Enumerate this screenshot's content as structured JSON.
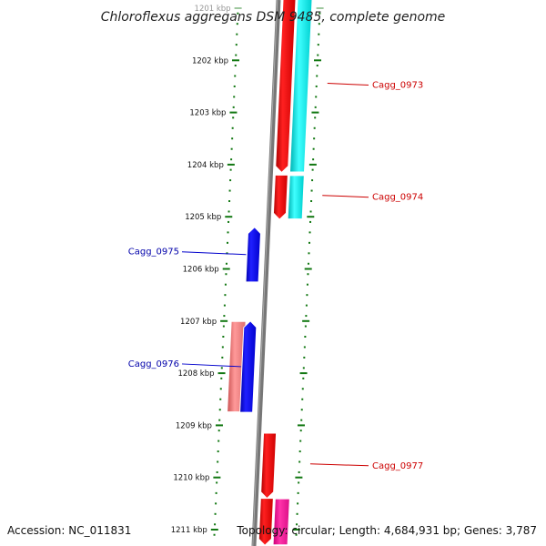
{
  "title": "Chloroflexus aggregans DSM 9485, complete genome",
  "footer": {
    "accession": "Accession: NC_011831",
    "summary": "Topology: circular; Length: 4,684,931 bp; Genes: 3,787"
  },
  "ticks": [
    {
      "label": "1201 kbp",
      "kbp": 1201,
      "faded": true
    },
    {
      "label": "1202 kbp",
      "kbp": 1202
    },
    {
      "label": "1203 kbp",
      "kbp": 1203
    },
    {
      "label": "1204 kbp",
      "kbp": 1204
    },
    {
      "label": "1205 kbp",
      "kbp": 1205
    },
    {
      "label": "1206 kbp",
      "kbp": 1206
    },
    {
      "label": "1207 kbp",
      "kbp": 1207
    },
    {
      "label": "1208 kbp",
      "kbp": 1208
    },
    {
      "label": "1209 kbp",
      "kbp": 1209
    },
    {
      "label": "1210 kbp",
      "kbp": 1210
    },
    {
      "label": "1211 kbp",
      "kbp": 1211
    }
  ],
  "genes": [
    {
      "name": "Cagg_0973",
      "strand": "reverse",
      "start_kbp": 1200.8,
      "end_kbp": 1204.15,
      "gene_color": "#ee0000",
      "cds_color": "#00e5e5",
      "label_color": "#cc0000"
    },
    {
      "name": "Cagg_0974",
      "strand": "reverse",
      "start_kbp": 1204.2,
      "end_kbp": 1205.05,
      "gene_color": "#ee0000",
      "cds_color": "#00e5e5",
      "label_color": "#cc0000"
    },
    {
      "name": "Cagg_0975",
      "strand": "forward",
      "start_kbp": 1205.2,
      "end_kbp": 1206.25,
      "gene_color": "#0000ee",
      "label_color": "#0000aa"
    },
    {
      "name": "Cagg_0976",
      "strand": "forward",
      "start_kbp": 1207.0,
      "end_kbp": 1208.75,
      "gene_color": "#0000ee",
      "cds_color": "#ee7777",
      "label_color": "#0000aa"
    },
    {
      "name": "Cagg_0977",
      "strand": "reverse",
      "start_kbp": 1209.15,
      "end_kbp": 1210.4,
      "gene_color": "#ee0000",
      "label_color": "#cc0000"
    },
    {
      "name": "",
      "strand": "reverse",
      "start_kbp": 1210.4,
      "end_kbp": 1211.3,
      "gene_color": "#ee0000",
      "cds_color": "#ee1199",
      "label_color": "#cc0000"
    }
  ],
  "colors": {
    "backbone": "#777777",
    "tick": "#117711",
    "forward_label_line": "#0000cc",
    "reverse_label_line": "#cc0000"
  }
}
